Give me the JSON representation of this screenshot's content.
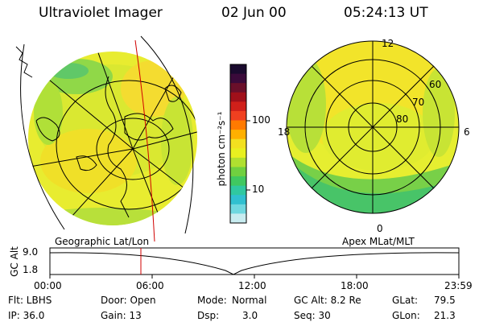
{
  "header": {
    "title": "Ultraviolet Imager",
    "date": "02 Jun 00",
    "time": "05:24:13 UT"
  },
  "colorbar": {
    "unit_label": "photon cm⁻²s⁻¹",
    "ticks": [
      "100",
      "10"
    ],
    "colors": [
      "#1a0a2e",
      "#3a0a3a",
      "#6a0f2a",
      "#a0101a",
      "#d0201a",
      "#f04020",
      "#ff7a00",
      "#ffb000",
      "#f2e020",
      "#e8f020",
      "#b0e030",
      "#70d040",
      "#40c860",
      "#30c8a0",
      "#30c0d0",
      "#70d8e0",
      "#c8ecf0"
    ]
  },
  "left_panel": {
    "caption": "Geographic Lat/Lon"
  },
  "right_panel": {
    "caption": "Apex MLat/MLT",
    "mlt_labels": {
      "top": "12",
      "left": "18",
      "right": "6",
      "bottom": "0"
    },
    "lat_labels": [
      "60",
      "70",
      "80"
    ]
  },
  "altitude_plot": {
    "ylabel": "GC Alt",
    "yticks": [
      "9.0",
      "1.8"
    ],
    "xticks": [
      "00:00",
      "06:00",
      "12:00",
      "18:00",
      "23:59"
    ],
    "marker_time": "05:24"
  },
  "info": {
    "row1": {
      "flt": "Flt: LBHS",
      "door": "Door: Open",
      "mode_label": "Mode:",
      "mode_value": "Normal",
      "gcalt": "GC Alt: 8.2 Re",
      "glat_label": "GLat:",
      "glat_value": "79.5"
    },
    "row2": {
      "ip": "IP: 36.0",
      "gain": "Gain: 13",
      "dsp_label": "Dsp:",
      "dsp_value": "3.0",
      "seq": "Seq: 30",
      "glon_label": "GLon:",
      "glon_value": "21.3"
    }
  }
}
